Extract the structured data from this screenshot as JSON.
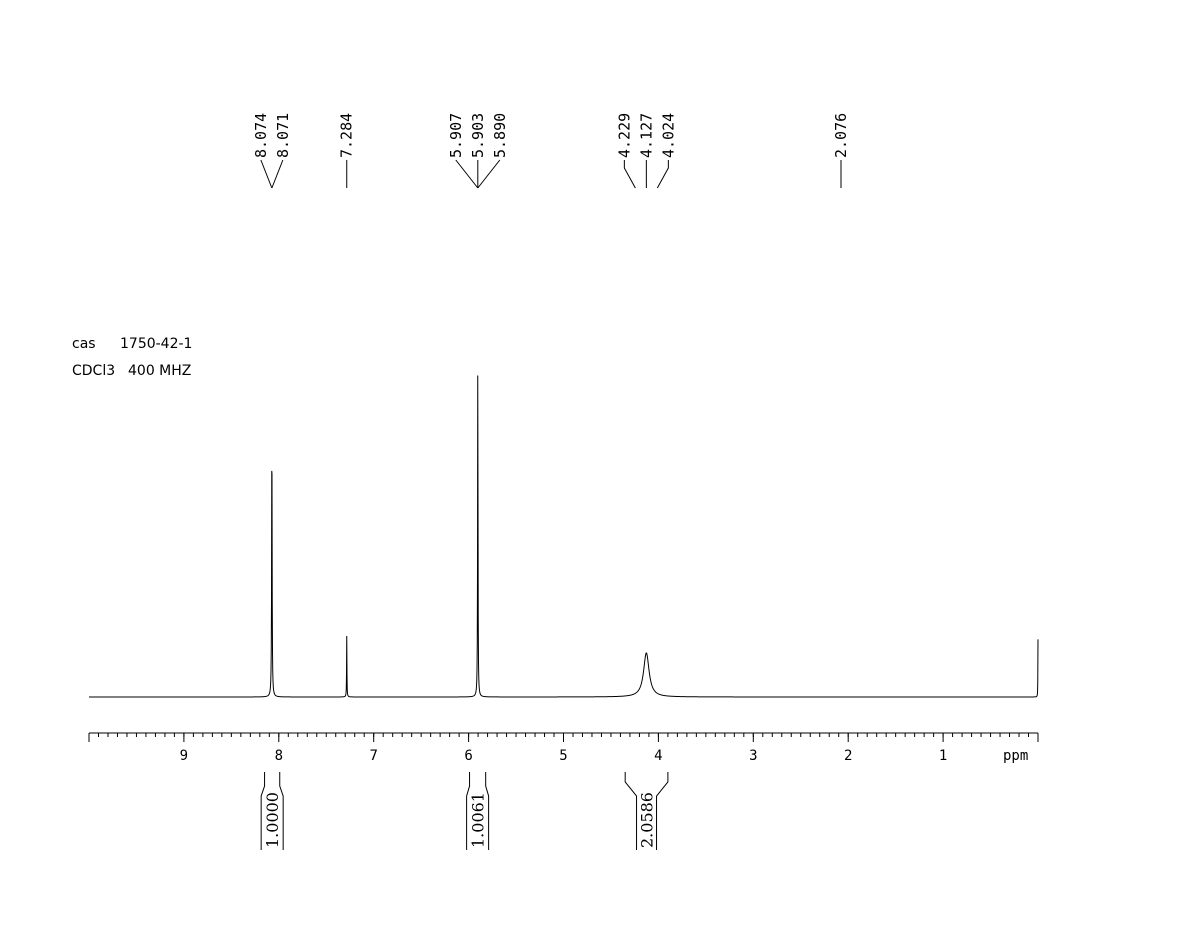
{
  "sample": {
    "cas_label": "cas",
    "cas_number": "1750-42-1",
    "solvent": "CDCl3",
    "frequency": "400 MHZ"
  },
  "chart_data": {
    "type": "line",
    "title": "",
    "xlabel": "ppm",
    "ylabel": "",
    "xlim": [
      10,
      0
    ],
    "x_reversed": true,
    "ylim": [
      0,
      1
    ],
    "grid": false,
    "x_ticks": [
      9,
      8,
      7,
      6,
      5,
      4,
      3,
      2,
      1
    ],
    "x_tick_labels": [
      "9",
      "8",
      "7",
      "6",
      "5",
      "4",
      "3",
      "2",
      "1"
    ],
    "peaks": [
      {
        "shift": 8.073,
        "height": 0.79,
        "width": 0.006
      },
      {
        "shift": 7.284,
        "height": 0.18,
        "width": 0.004
      },
      {
        "shift": 5.903,
        "height": 1.0,
        "width": 0.005
      },
      {
        "shift": 4.127,
        "height": 0.13,
        "width": 0.07
      },
      {
        "shift": 0.0,
        "height": 0.17,
        "width": 0.003
      }
    ],
    "peak_labels": [
      {
        "group": [
          {
            "shift": 8.074,
            "label": "8.074"
          },
          {
            "shift": 8.071,
            "label": "8.071"
          }
        ],
        "anchor": 8.073
      },
      {
        "group": [
          {
            "shift": 7.284,
            "label": "7.284"
          }
        ],
        "anchor": 7.284
      },
      {
        "group": [
          {
            "shift": 5.907,
            "label": "5.907"
          },
          {
            "shift": 5.903,
            "label": "5.903"
          },
          {
            "shift": 5.89,
            "label": "5.890"
          }
        ],
        "anchor": 5.903
      },
      {
        "group": [
          {
            "shift": 4.229,
            "label": "4.229"
          },
          {
            "shift": 4.127,
            "label": "4.127"
          },
          {
            "shift": 4.024,
            "label": "4.024"
          }
        ],
        "anchor": 4.127,
        "spread": true
      },
      {
        "group": [
          {
            "shift": 2.076,
            "label": "2.076"
          }
        ],
        "anchor": 2.076
      }
    ],
    "integrals": [
      {
        "from": 8.15,
        "to": 7.99,
        "value": "1.0000"
      },
      {
        "from": 5.99,
        "to": 5.82,
        "value": "1.0061"
      },
      {
        "from": 4.35,
        "to": 3.9,
        "value": "2.0586"
      }
    ]
  }
}
